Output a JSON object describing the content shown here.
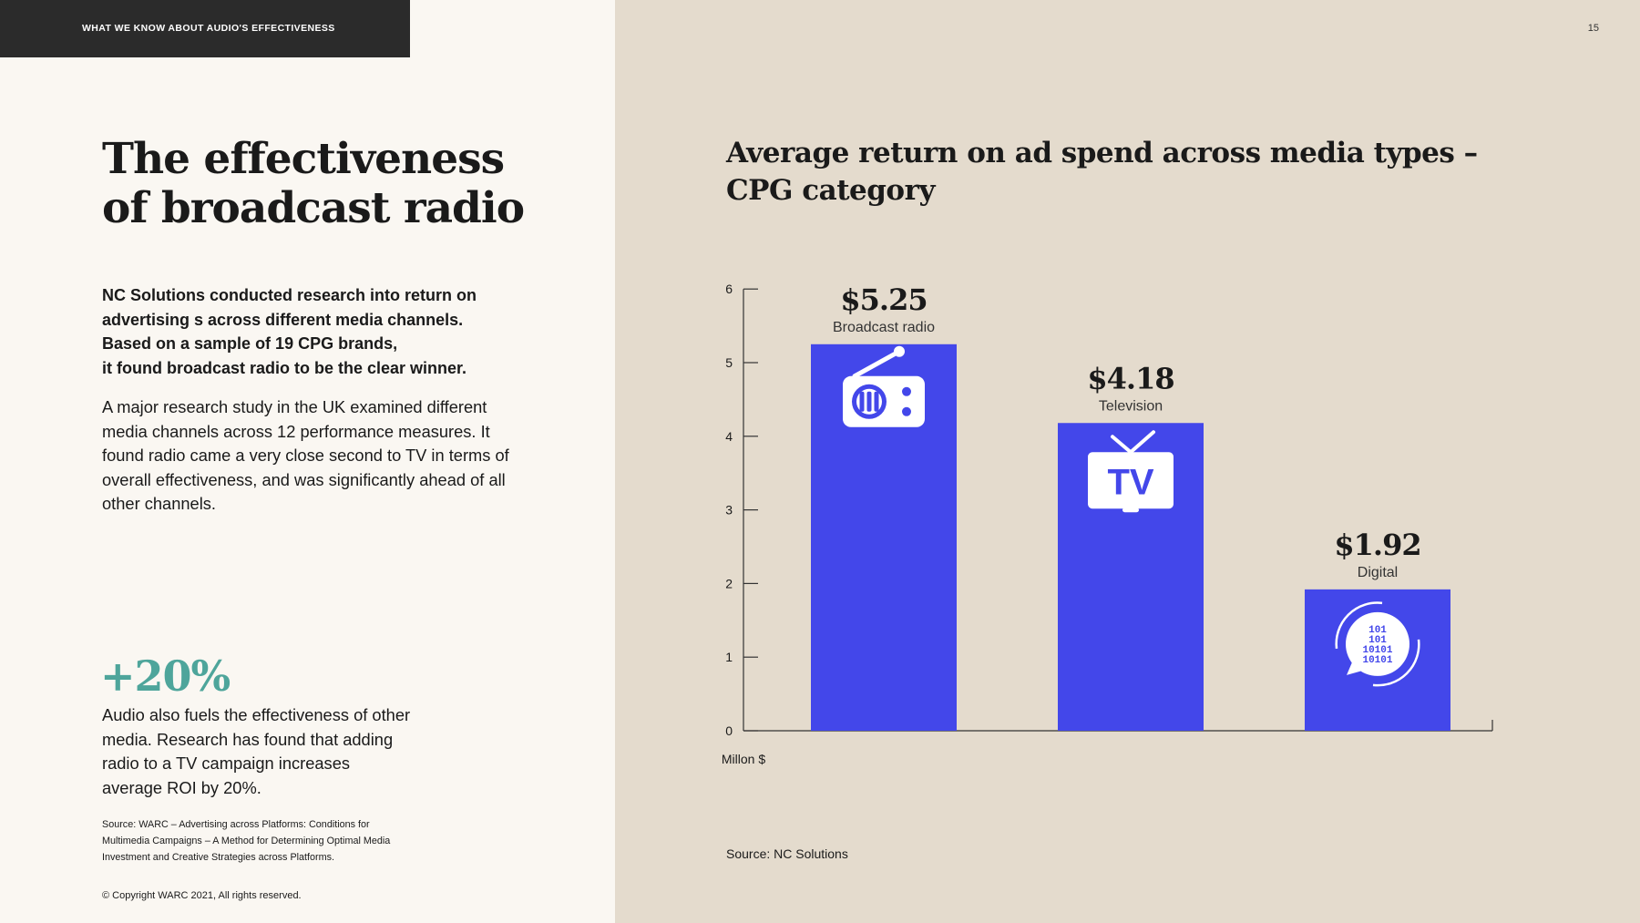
{
  "header": {
    "section_label": "WHAT WE KNOW ABOUT AUDIO'S EFFECTIVENESS",
    "page_number": "15"
  },
  "left": {
    "title_line1": "The effectiveness",
    "title_line2": "of broadcast radio",
    "lead_lines": [
      "NC Solutions conducted research into return on",
      "advertising s across different media channels.",
      "Based on a sample of 19 CPG brands,",
      "it found broadcast radio to be the clear winner."
    ],
    "body": "A major research study in the UK examined different media channels across 12 performance measures. It found radio came a very close second to TV in terms of overall effectiveness, and was significantly ahead of all other channels.",
    "stat": "+20%",
    "stat_text": "Audio also fuels the effectiveness of other media. Research has found that adding radio to a TV campaign increases average ROI by 20%.",
    "footnote": "Source: WARC – Advertising across Platforms: Conditions for Multimedia Campaigns – A Method for Determining Optimal Media Investment and Creative Strategies across Platforms.",
    "copyright": "©  Copyright WARC 2021, All rights reserved."
  },
  "colors": {
    "bar": "#4347ea",
    "stat": "#4ea59b",
    "panel": "#e4dbcd",
    "header_bar": "#2b2b2b"
  },
  "chart_data": {
    "type": "bar",
    "title": "Average return on ad spend across media types – CPG category",
    "categories": [
      "Broadcast radio",
      "Television",
      "Digital"
    ],
    "values": [
      5.25,
      4.18,
      1.92
    ],
    "value_labels": [
      "$5.25",
      "$4.18",
      "$1.92"
    ],
    "icons": [
      "radio-icon",
      "tv-icon",
      "digital-icon"
    ],
    "tv_icon_text": "TV",
    "digital_icon_text": [
      "101",
      "101",
      "10101",
      "10101"
    ],
    "ylim": [
      0,
      6
    ],
    "yticks": [
      "0",
      "1",
      "2",
      "3",
      "4",
      "5",
      "6"
    ],
    "ylabel": "Millon $",
    "grid": false,
    "source": "Source: NC Solutions"
  }
}
